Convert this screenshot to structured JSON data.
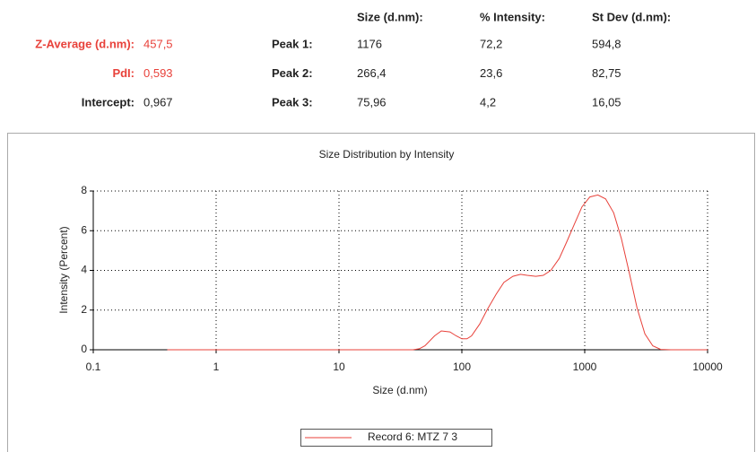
{
  "summary": {
    "headers": [
      "Size (d.nm):",
      "% Intensity:",
      "St Dev (d.nm):"
    ],
    "stats": [
      {
        "label": "Z-Average (d.nm):",
        "value": "457,5"
      },
      {
        "label": "PdI:",
        "value": "0,593"
      },
      {
        "label": "Intercept:",
        "value": "0,967"
      }
    ],
    "peaks": [
      {
        "label": "Peak 1:",
        "values": [
          "1176",
          "72,2",
          "594,8"
        ]
      },
      {
        "label": "Peak 2:",
        "values": [
          "266,4",
          "23,6",
          "82,75"
        ]
      },
      {
        "label": "Peak 3:",
        "values": [
          "75,96",
          "4,2",
          "16,05"
        ]
      }
    ]
  },
  "chart_data": {
    "type": "line",
    "title": "Size Distribution by Intensity",
    "x_label": "Size (d.nm)",
    "y_label": "Intensity (Percent)",
    "log_x": true,
    "grid": true,
    "legend": "bottom",
    "xlim": [
      0.1,
      10000
    ],
    "xticks": [
      0.1,
      1,
      10,
      100,
      1000,
      10000
    ],
    "ylim": [
      0,
      8
    ],
    "yticks": [
      0,
      2,
      4,
      6,
      8
    ],
    "x": [
      0.4,
      1,
      10,
      40,
      45,
      50,
      60,
      68,
      80,
      90,
      100,
      110,
      120,
      140,
      160,
      190,
      220,
      260,
      300,
      340,
      400,
      460,
      530,
      620,
      710,
      820,
      950,
      1100,
      1280,
      1480,
      1720,
      1990,
      2300,
      2670,
      3090,
      3580,
      4150,
      5000,
      10000
    ],
    "series": [
      {
        "name": "Record 6: MTZ 7 3",
        "color": "#e8413a",
        "values": [
          0,
          0,
          0,
          0,
          0.05,
          0.2,
          0.7,
          0.95,
          0.9,
          0.7,
          0.55,
          0.55,
          0.7,
          1.3,
          2.0,
          2.8,
          3.4,
          3.7,
          3.8,
          3.75,
          3.7,
          3.75,
          4.0,
          4.6,
          5.4,
          6.3,
          7.2,
          7.7,
          7.8,
          7.6,
          6.9,
          5.6,
          3.9,
          2.1,
          0.8,
          0.2,
          0.02,
          0,
          0
        ]
      }
    ]
  }
}
